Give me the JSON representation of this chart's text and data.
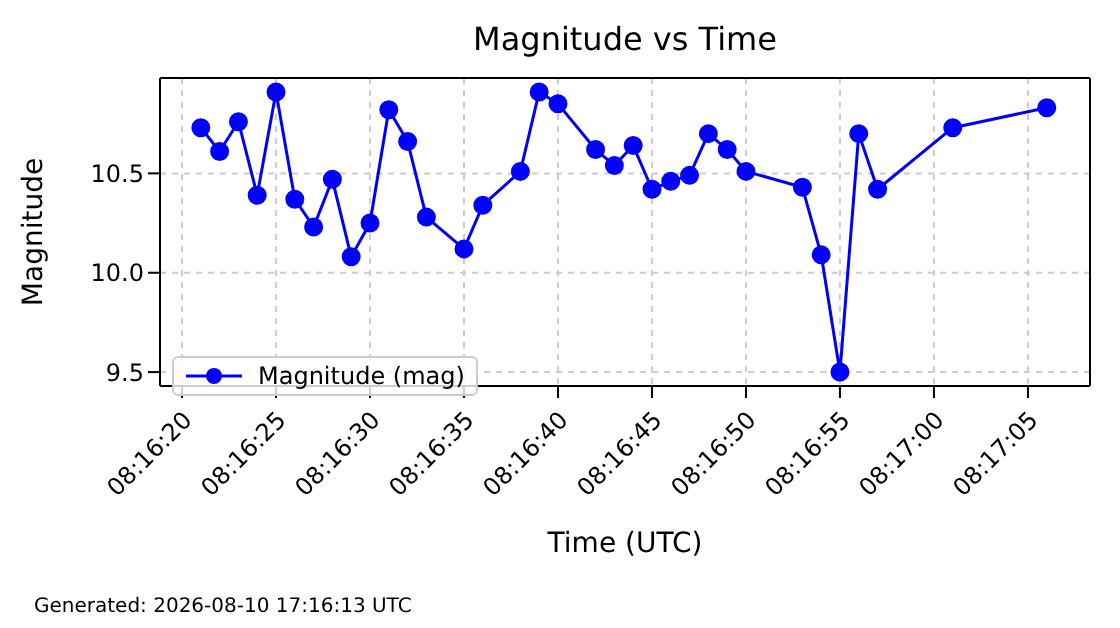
{
  "chart_data": {
    "type": "line",
    "title": "Magnitude vs Time",
    "xlabel": "Time (UTC)",
    "ylabel": "Magnitude",
    "annotations": [
      "Generated: 2026-08-10 17:16:13 UTC"
    ],
    "x": [
      8.2725,
      8.272778,
      8.273056,
      8.273333,
      8.273611,
      8.273889,
      8.274167,
      8.274444,
      8.274722,
      8.275,
      8.275278,
      8.275556,
      8.275833,
      8.276389,
      8.276667,
      8.277222,
      8.2775,
      8.277778,
      8.278333,
      8.278611,
      8.278889,
      8.279167,
      8.279444,
      8.279722,
      8.28,
      8.280278,
      8.280556,
      8.281389,
      8.281667,
      8.281944,
      8.282222,
      8.2825,
      8.283611,
      8.285
    ],
    "series": [
      {
        "name": "Magnitude (mag)",
        "color": "#0000ff",
        "values": [
          10.73,
          10.61,
          10.76,
          10.39,
          10.91,
          10.37,
          10.23,
          10.47,
          10.08,
          10.25,
          10.82,
          10.66,
          10.28,
          10.12,
          10.34,
          10.51,
          10.91,
          10.85,
          10.62,
          10.54,
          10.64,
          10.42,
          10.46,
          10.49,
          10.7,
          10.62,
          10.51,
          10.43,
          10.09,
          9.5,
          10.7,
          10.42,
          10.73,
          10.83
        ]
      }
    ],
    "xlim": [
      8.271897,
      8.285639
    ],
    "xticks": [
      {
        "value": 8.272222,
        "label": "08:16:20"
      },
      {
        "value": 8.273611,
        "label": "08:16:25"
      },
      {
        "value": 8.275,
        "label": "08:16:30"
      },
      {
        "value": 8.276389,
        "label": "08:16:35"
      },
      {
        "value": 8.277778,
        "label": "08:16:40"
      },
      {
        "value": 8.279167,
        "label": "08:16:45"
      },
      {
        "value": 8.280556,
        "label": "08:16:50"
      },
      {
        "value": 8.281944,
        "label": "08:16:55"
      },
      {
        "value": 8.283333,
        "label": "08:17:00"
      },
      {
        "value": 8.284722,
        "label": "08:17:05"
      }
    ],
    "ylim": [
      9.43,
      10.98
    ],
    "yticks": [
      9.5,
      {
        "value": 10,
        "label": "10.0"
      },
      10.5
    ],
    "grid": true,
    "legend": "bottom left",
    "marker": "circle",
    "line_style": "solid"
  }
}
